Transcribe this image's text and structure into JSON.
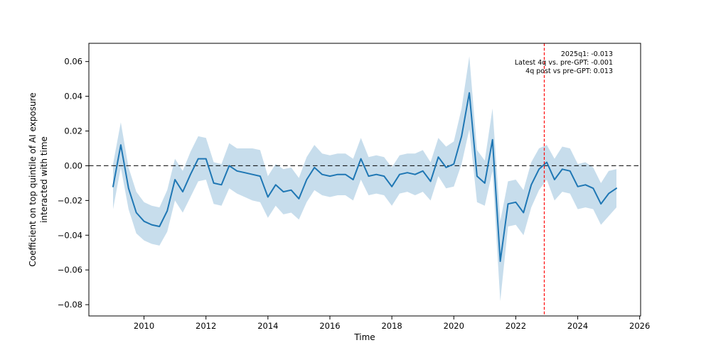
{
  "chart_data": {
    "type": "line",
    "title": "",
    "xlabel": "Time",
    "ylabel_line1": "Coefficient on top quintile of AI exposure",
    "ylabel_line2": "interacted with time",
    "legend": "none",
    "grid": false,
    "xlim": [
      2008.22,
      2026.03
    ],
    "ylim": [
      -0.0865,
      0.0705
    ],
    "x_ticks": [
      2010,
      2012,
      2014,
      2016,
      2018,
      2020,
      2022,
      2024,
      2026
    ],
    "x_tick_labels": [
      "2010",
      "2012",
      "2014",
      "2016",
      "2018",
      "2020",
      "2022",
      "2024",
      "2026"
    ],
    "y_ticks": [
      -0.08,
      -0.06,
      -0.04,
      -0.02,
      0.0,
      0.02,
      0.04,
      0.06
    ],
    "y_tick_labels": [
      "−0.08",
      "−0.06",
      "−0.04",
      "−0.02",
      "0.00",
      "0.02",
      "0.04",
      "0.06"
    ],
    "series_name": "Coefficient on top quintile of AI exposure interacted with time (quarterly, with confidence band)",
    "quarters": [
      "2008q4",
      "2009q1",
      "2009q2",
      "2009q3",
      "2009q4",
      "2010q1",
      "2010q2",
      "2010q3",
      "2010q4",
      "2011q1",
      "2011q2",
      "2011q3",
      "2011q4",
      "2012q1",
      "2012q2",
      "2012q3",
      "2012q4",
      "2013q1",
      "2013q2",
      "2013q3",
      "2013q4",
      "2014q1",
      "2014q2",
      "2014q3",
      "2014q4",
      "2015q1",
      "2015q2",
      "2015q3",
      "2015q4",
      "2016q1",
      "2016q2",
      "2016q3",
      "2016q4",
      "2017q1",
      "2017q2",
      "2017q3",
      "2017q4",
      "2018q1",
      "2018q2",
      "2018q3",
      "2018q4",
      "2019q1",
      "2019q2",
      "2019q3",
      "2019q4",
      "2020q1",
      "2020q2",
      "2020q3",
      "2020q4",
      "2021q1",
      "2021q2",
      "2021q3",
      "2021q4",
      "2022q1",
      "2022q2",
      "2022q3",
      "2022q4",
      "2023q1",
      "2023q2",
      "2023q3",
      "2023q4",
      "2024q1",
      "2024q2",
      "2024q3",
      "2024q4",
      "2025q1"
    ],
    "x": [
      2009.0,
      2009.25,
      2009.5,
      2009.75,
      2010.0,
      2010.25,
      2010.5,
      2010.75,
      2011.0,
      2011.25,
      2011.5,
      2011.75,
      2012.0,
      2012.25,
      2012.5,
      2012.75,
      2013.0,
      2013.25,
      2013.5,
      2013.75,
      2014.0,
      2014.25,
      2014.5,
      2014.75,
      2015.0,
      2015.25,
      2015.5,
      2015.75,
      2016.0,
      2016.25,
      2016.5,
      2016.75,
      2017.0,
      2017.25,
      2017.5,
      2017.75,
      2018.0,
      2018.25,
      2018.5,
      2018.75,
      2019.0,
      2019.25,
      2019.5,
      2019.75,
      2020.0,
      2020.25,
      2020.5,
      2020.75,
      2021.0,
      2021.25,
      2021.5,
      2021.75,
      2022.0,
      2022.25,
      2022.5,
      2022.75,
      2023.0,
      2023.25,
      2023.5,
      2023.75,
      2024.0,
      2024.25,
      2024.5,
      2024.75,
      2025.0,
      2025.25
    ],
    "values": [
      -0.012,
      0.012,
      -0.013,
      -0.027,
      -0.032,
      -0.034,
      -0.035,
      -0.026,
      -0.008,
      -0.015,
      -0.005,
      0.004,
      0.004,
      -0.01,
      -0.011,
      0.0,
      -0.003,
      -0.004,
      -0.005,
      -0.006,
      -0.018,
      -0.011,
      -0.015,
      -0.014,
      -0.019,
      -0.008,
      -0.001,
      -0.005,
      -0.006,
      -0.005,
      -0.005,
      -0.008,
      0.004,
      -0.006,
      -0.005,
      -0.006,
      -0.012,
      -0.005,
      -0.004,
      -0.005,
      -0.003,
      -0.009,
      0.005,
      -0.001,
      0.001,
      0.017,
      0.042,
      -0.006,
      -0.01,
      0.015,
      -0.055,
      -0.022,
      -0.021,
      -0.027,
      -0.011,
      -0.002,
      0.002,
      -0.008,
      -0.002,
      -0.003,
      -0.012,
      -0.011,
      -0.013,
      -0.022,
      -0.016,
      -0.013
    ],
    "ci_halfwidth": [
      0.013,
      0.013,
      0.012,
      0.012,
      0.011,
      0.011,
      0.011,
      0.012,
      0.012,
      0.012,
      0.013,
      0.013,
      0.012,
      0.012,
      0.012,
      0.013,
      0.013,
      0.014,
      0.015,
      0.015,
      0.012,
      0.012,
      0.013,
      0.013,
      0.012,
      0.013,
      0.013,
      0.012,
      0.012,
      0.012,
      0.012,
      0.012,
      0.012,
      0.011,
      0.011,
      0.011,
      0.011,
      0.011,
      0.011,
      0.012,
      0.012,
      0.011,
      0.011,
      0.012,
      0.013,
      0.016,
      0.021,
      0.015,
      0.013,
      0.018,
      0.023,
      0.013,
      0.013,
      0.013,
      0.013,
      0.012,
      0.01,
      0.012,
      0.013,
      0.013,
      0.013,
      0.013,
      0.012,
      0.012,
      0.013,
      0.011
    ],
    "reference_lines": {
      "zero_hline_y": 0.0,
      "gpt_release_vline_x": 2022.92
    },
    "annotation_lines": [
      "2025q1: -0.013",
      "Latest 4q vs. pre-GPT: -0.001",
      "4q post vs pre-GPT: 0.013"
    ],
    "colors": {
      "line": "#1f77b4",
      "band": "#1f77b4",
      "band_opacity": 0.25,
      "zero_line": "#000000",
      "gpt_vline": "#ff0000",
      "spine": "#000000",
      "text": "#000000"
    }
  }
}
